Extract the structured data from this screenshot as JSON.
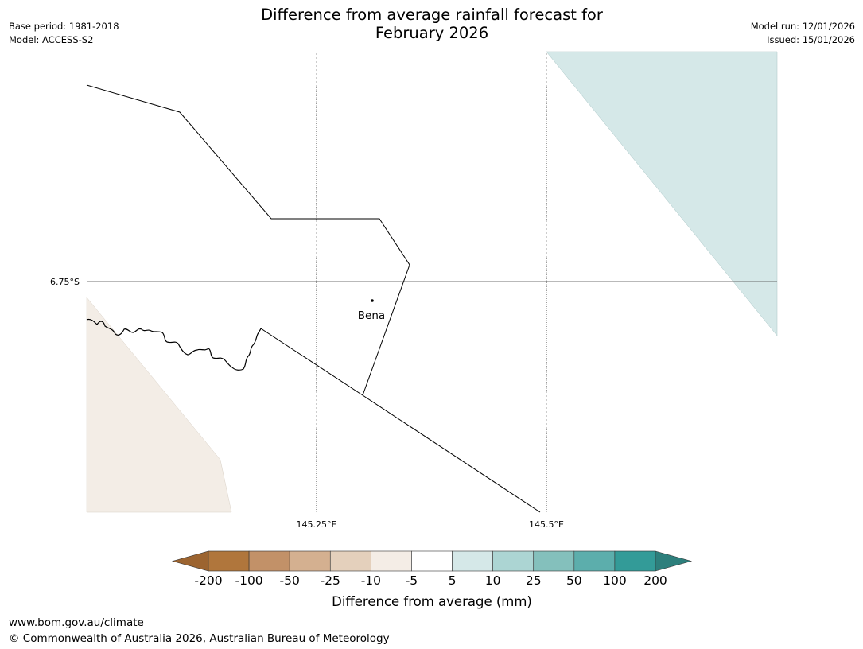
{
  "title_line1": "Difference from average rainfall forecast for",
  "title_line2": "February 2026",
  "meta_left": {
    "base_period": "Base period: 1981-2018",
    "model": "Model: ACCESS-S2"
  },
  "meta_right": {
    "model_run": "Model run: 12/01/2026",
    "issued": "Issued: 15/01/2026"
  },
  "map": {
    "lat_labels": [
      "6.75°S"
    ],
    "lon_labels": [
      "145.25°E",
      "145.5°E"
    ],
    "place": {
      "name": "Bena"
    },
    "fill_colors": {
      "wet_band_5_10": "#d5e8e8",
      "dry_band_minus10_minus5": "#f3ede6"
    },
    "gridline_style": "dotted"
  },
  "colorbar": {
    "label": "Difference from average (mm)",
    "ticks": [
      "-200",
      "-100",
      "-50",
      "-25",
      "-10",
      "-5",
      "5",
      "10",
      "25",
      "50",
      "100",
      "200"
    ],
    "colors": [
      "#9c6430",
      "#b0763c",
      "#c29168",
      "#d4b090",
      "#e4d0bc",
      "#f4ede6",
      "#ffffff",
      "#d5e8e8",
      "#acd5d3",
      "#84c0bc",
      "#5caeac",
      "#339b98",
      "#2d7f7c"
    ],
    "extend": "both"
  },
  "footer": {
    "url": "www.bom.gov.au/climate",
    "copyright": "© Commonwealth of Australia 2026, Australian Bureau of Meteorology"
  }
}
